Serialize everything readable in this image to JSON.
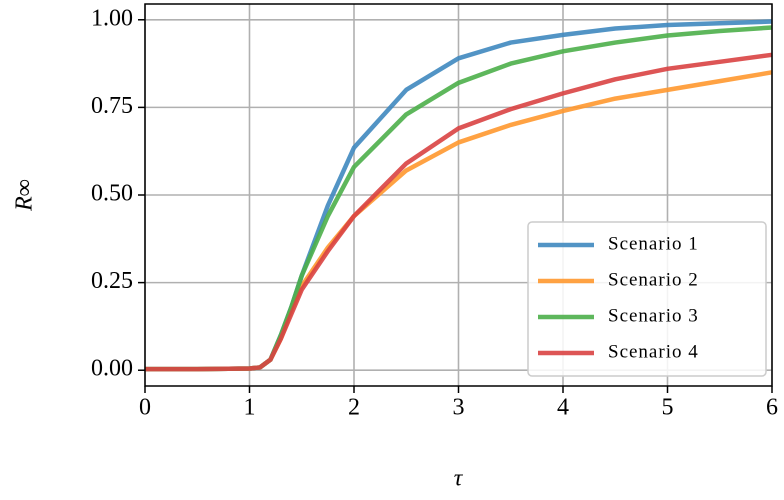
{
  "chart_data": {
    "type": "line",
    "xlabel": "τ",
    "ylabel": "R∞",
    "x": [
      0,
      0.5,
      1,
      1.1,
      1.2,
      1.3,
      1.4,
      1.5,
      1.75,
      2,
      2.5,
      3,
      3.5,
      4,
      4.5,
      5,
      5.5,
      6
    ],
    "series": [
      {
        "name": "Scenario 1",
        "color": "#3f88bf",
        "values": [
          0.003,
          0.003,
          0.005,
          0.008,
          0.03,
          0.1,
          0.18,
          0.27,
          0.47,
          0.635,
          0.8,
          0.89,
          0.935,
          0.957,
          0.975,
          0.985,
          0.99,
          0.995
        ]
      },
      {
        "name": "Scenario 2",
        "color": "#ff982f",
        "values": [
          0.003,
          0.003,
          0.005,
          0.008,
          0.03,
          0.09,
          0.17,
          0.24,
          0.35,
          0.44,
          0.57,
          0.65,
          0.7,
          0.74,
          0.775,
          0.8,
          0.825,
          0.85
        ]
      },
      {
        "name": "Scenario 3",
        "color": "#4daf4a",
        "values": [
          0.003,
          0.003,
          0.005,
          0.008,
          0.03,
          0.1,
          0.18,
          0.27,
          0.44,
          0.58,
          0.73,
          0.82,
          0.875,
          0.91,
          0.935,
          0.955,
          0.968,
          0.978
        ]
      },
      {
        "name": "Scenario 4",
        "color": "#d94343",
        "values": [
          0.003,
          0.003,
          0.005,
          0.008,
          0.03,
          0.09,
          0.16,
          0.23,
          0.34,
          0.44,
          0.59,
          0.69,
          0.745,
          0.79,
          0.83,
          0.86,
          0.88,
          0.9
        ]
      }
    ],
    "xlim": [
      0,
      6
    ],
    "ylim": [
      -0.045,
      1.045
    ],
    "xticks": [
      0,
      1,
      2,
      3,
      4,
      5,
      6
    ],
    "yticks": [
      {
        "value": 0,
        "label": "0.00"
      },
      {
        "value": 0.25,
        "label": "0.25"
      },
      {
        "value": 0.5,
        "label": "0.50"
      },
      {
        "value": 0.75,
        "label": "0.75"
      },
      {
        "value": 1,
        "label": "1.00"
      }
    ],
    "grid": true,
    "legend": "lower right"
  }
}
